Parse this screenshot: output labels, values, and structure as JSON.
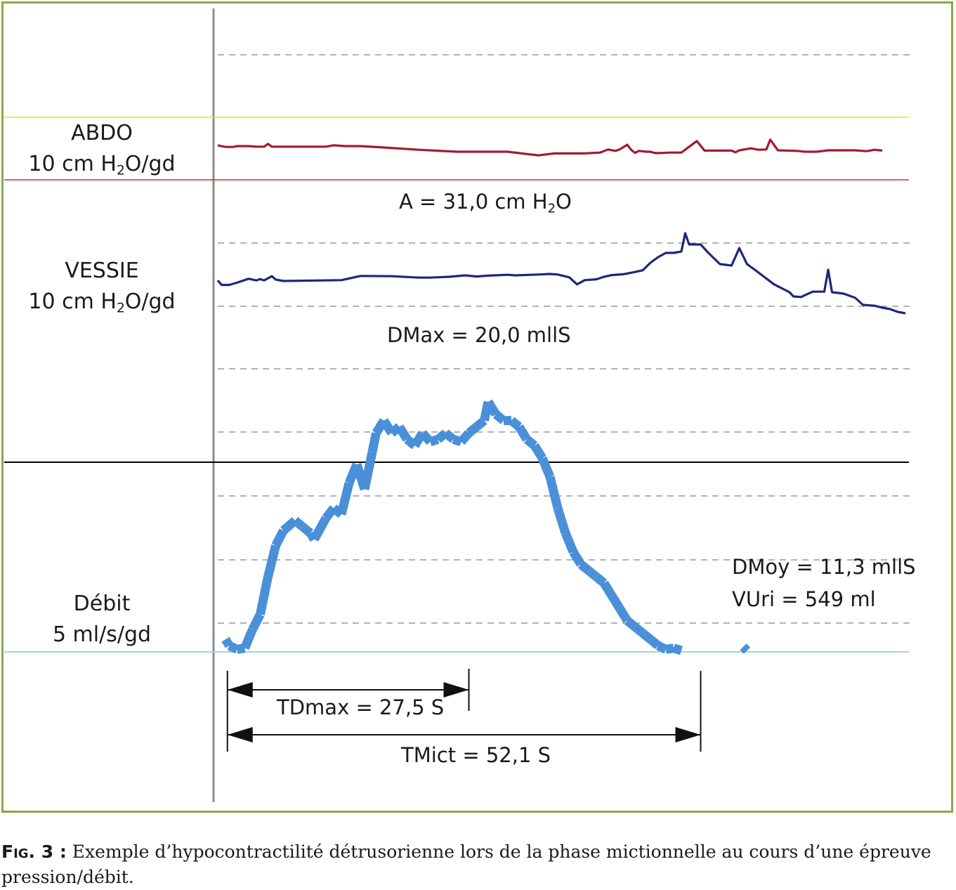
{
  "chart_data": {
    "type": "line",
    "channels": [
      {
        "name": "ABDO",
        "scale": "10 cm H2O/gd",
        "color": "#a31a2e",
        "points": [
          [
            0,
            0.27
          ],
          [
            2,
            -0.3
          ],
          [
            4,
            -0.3
          ],
          [
            5,
            0.0
          ],
          [
            8,
            0.0
          ],
          [
            10,
            -0.2
          ],
          [
            12,
            -0.2
          ],
          [
            13,
            0.8
          ],
          [
            14,
            -0.2
          ],
          [
            22,
            -0.2
          ],
          [
            28,
            -0.2
          ],
          [
            30,
            0.3
          ],
          [
            33,
            0.0
          ],
          [
            37,
            0.0
          ],
          [
            42,
            -0.4
          ],
          [
            52,
            -1.3
          ],
          [
            62,
            -2.0
          ],
          [
            75,
            -2.0
          ],
          [
            83,
            -3.3
          ],
          [
            87,
            -2.6
          ],
          [
            95,
            -2.6
          ],
          [
            99,
            -2.3
          ],
          [
            101,
            -1.2
          ],
          [
            103,
            -1.7
          ],
          [
            104,
            -1.2
          ],
          [
            106,
            0.5
          ],
          [
            107,
            -1.3
          ],
          [
            108,
            -2.4
          ],
          [
            109,
            -1.7
          ],
          [
            111,
            -2.0
          ],
          [
            112,
            -2.0
          ],
          [
            113,
            -2.4
          ],
          [
            114,
            -2.5
          ],
          [
            117,
            -2.3
          ],
          [
            120,
            -2.3
          ],
          [
            124,
            1.8
          ],
          [
            126,
            -1.6
          ],
          [
            133,
            -1.6
          ],
          [
            134,
            -2.2
          ],
          [
            135,
            -1.5
          ],
          [
            138,
            -0.8
          ],
          [
            140,
            -1.3
          ],
          [
            142,
            -1.2
          ],
          [
            143,
            2.3
          ],
          [
            145,
            -1.5
          ],
          [
            150,
            -1.7
          ],
          [
            152,
            -2.0
          ],
          [
            155,
            -2.0
          ],
          [
            158,
            -1.5
          ],
          [
            165,
            -1.5
          ],
          [
            168,
            -1.8
          ],
          [
            170,
            -1.3
          ],
          [
            172,
            -1.6
          ]
        ]
      },
      {
        "name": "VESSIE",
        "scale": "10 cm H2O/gd",
        "color": "#1c2878",
        "points": [
          [
            0,
            0.2
          ],
          [
            1,
            -1.4
          ],
          [
            3,
            -1.4
          ],
          [
            5,
            -0.6
          ],
          [
            8,
            0.8
          ],
          [
            10,
            0.2
          ],
          [
            11,
            0.7
          ],
          [
            12,
            0.2
          ],
          [
            14,
            1.7
          ],
          [
            15,
            0.5
          ],
          [
            17,
            0.0
          ],
          [
            32,
            0.3
          ],
          [
            36,
            1.5
          ],
          [
            37,
            1.8
          ],
          [
            45,
            1.7
          ],
          [
            52,
            1.2
          ],
          [
            55,
            1.2
          ],
          [
            60,
            1.5
          ],
          [
            64,
            2.0
          ],
          [
            67,
            1.6
          ],
          [
            70,
            1.9
          ],
          [
            75,
            2.2
          ],
          [
            77,
            2.0
          ],
          [
            83,
            2.3
          ],
          [
            86,
            2.5
          ],
          [
            88,
            2.3
          ],
          [
            91,
            1.3
          ],
          [
            93,
            -1.2
          ],
          [
            95,
            0.3
          ],
          [
            98,
            0.6
          ],
          [
            100,
            1.5
          ],
          [
            102,
            2.1
          ],
          [
            105,
            2.4
          ],
          [
            108,
            3.2
          ],
          [
            110,
            3.8
          ],
          [
            112,
            6.5
          ],
          [
            114,
            8.5
          ],
          [
            116,
            10.0
          ],
          [
            118,
            10.0
          ],
          [
            120,
            10.5
          ],
          [
            121,
            17.0
          ],
          [
            122,
            13.0
          ],
          [
            125,
            13.0
          ],
          [
            127,
            10.0
          ],
          [
            130,
            6.0
          ],
          [
            133,
            5.5
          ],
          [
            135,
            11.7
          ],
          [
            137,
            6.0
          ],
          [
            139,
            4.0
          ],
          [
            144,
            -1.2
          ],
          [
            148,
            -4.0
          ],
          [
            149,
            -5.5
          ],
          [
            151,
            -5.7
          ],
          [
            154,
            -3.8
          ],
          [
            157,
            -3.8
          ],
          [
            158,
            4.0
          ],
          [
            159,
            -4.0
          ],
          [
            162,
            -4.5
          ],
          [
            165,
            -6.0
          ],
          [
            167,
            -8.5
          ],
          [
            170,
            -8.8
          ],
          [
            172,
            -9.5
          ],
          [
            174,
            -10.0
          ],
          [
            176,
            -11.0
          ],
          [
            178,
            -11.5
          ]
        ]
      },
      {
        "name": "Débit",
        "scale": "5 ml/s/gd",
        "color": "#4a90d9",
        "points": [
          [
            2,
            1.0
          ],
          [
            3,
            0.5
          ],
          [
            5,
            0.2
          ],
          [
            7,
            0.3
          ],
          [
            9,
            1.8
          ],
          [
            11,
            3.0
          ],
          [
            13,
            6.0
          ],
          [
            15,
            8.5
          ],
          [
            17,
            9.7
          ],
          [
            20,
            10.5
          ],
          [
            22,
            10.0
          ],
          [
            24,
            9.5
          ],
          [
            25,
            9.0
          ],
          [
            28,
            10.7
          ],
          [
            30,
            11.5
          ],
          [
            32,
            11.0
          ],
          [
            34,
            13.5
          ],
          [
            36,
            15.0
          ],
          [
            38,
            13.0
          ],
          [
            40,
            16.0
          ],
          [
            41,
            17.5
          ],
          [
            43,
            18.5
          ],
          [
            45,
            17.5
          ],
          [
            47,
            18.0
          ],
          [
            49,
            17.0
          ],
          [
            51,
            16.5
          ],
          [
            53,
            17.5
          ],
          [
            55,
            16.8
          ],
          [
            57,
            17.0
          ],
          [
            59,
            17.5
          ],
          [
            61,
            17.0
          ],
          [
            63,
            16.8
          ],
          [
            65,
            17.5
          ],
          [
            67,
            18.0
          ],
          [
            69,
            18.5
          ],
          [
            70,
            20.0
          ],
          [
            72,
            19.0
          ],
          [
            74,
            18.5
          ],
          [
            76,
            18.5
          ],
          [
            78,
            18.0
          ],
          [
            80,
            17.0
          ],
          [
            82,
            16.5
          ],
          [
            84,
            15.5
          ],
          [
            86,
            14.0
          ],
          [
            88,
            11.5
          ],
          [
            90,
            9.5
          ],
          [
            92,
            8.0
          ],
          [
            94,
            7.0
          ],
          [
            96,
            6.5
          ],
          [
            98,
            6.0
          ],
          [
            100,
            5.5
          ],
          [
            102,
            4.5
          ],
          [
            104,
            3.5
          ],
          [
            106,
            2.5
          ],
          [
            108,
            2.0
          ],
          [
            110,
            1.5
          ],
          [
            112,
            1.0
          ],
          [
            114,
            0.5
          ],
          [
            116,
            0.2
          ],
          [
            118,
            0.3
          ],
          [
            120,
            0.1
          ],
          [
            136,
            0.4
          ],
          [
            137,
            0.1
          ]
        ]
      }
    ],
    "annotations": {
      "A": "A = 31,0 cm H",
      "A_sub": "2",
      "A_tail": "O",
      "DMax": "DMax = 20,0 mllS",
      "DMoy": "DMoy = 11,3 mllS",
      "VUri": "VUri = 549 ml",
      "TDmax": "TDmax = 27,5 S",
      "TMict": "TMict = 52,1 S"
    },
    "time_markers": {
      "start": 2.5,
      "tdmax_end": 65,
      "tmict_end": 125
    }
  },
  "labels": {
    "abdo_name": "ABDO",
    "abdo_unit_pre": "10 cm H",
    "abdo_unit_sub": "2",
    "abdo_unit_post": "O/gd",
    "vessie_name": "VESSIE",
    "vessie_unit_pre": "10 cm H",
    "vessie_unit_sub": "2",
    "vessie_unit_post": "O/gd",
    "debit_name": "Débit",
    "debit_unit": "5 ml/s/gd"
  },
  "caption": {
    "fig_label": "Fig. 3 :",
    "text": " Exemple d’hypocontractilité détrusorienne lors de la phase mictionnelle au cours d’une épreuve pression/débit."
  },
  "colors": {
    "frame": "#8aa845",
    "abdo_baseline": "#c0392b",
    "abdo_top": "#f2e000",
    "debit_baseline": "#a8cfe6",
    "divider": "#000000",
    "axis": "#8c8c8c",
    "grid": "#9a9a9a"
  }
}
